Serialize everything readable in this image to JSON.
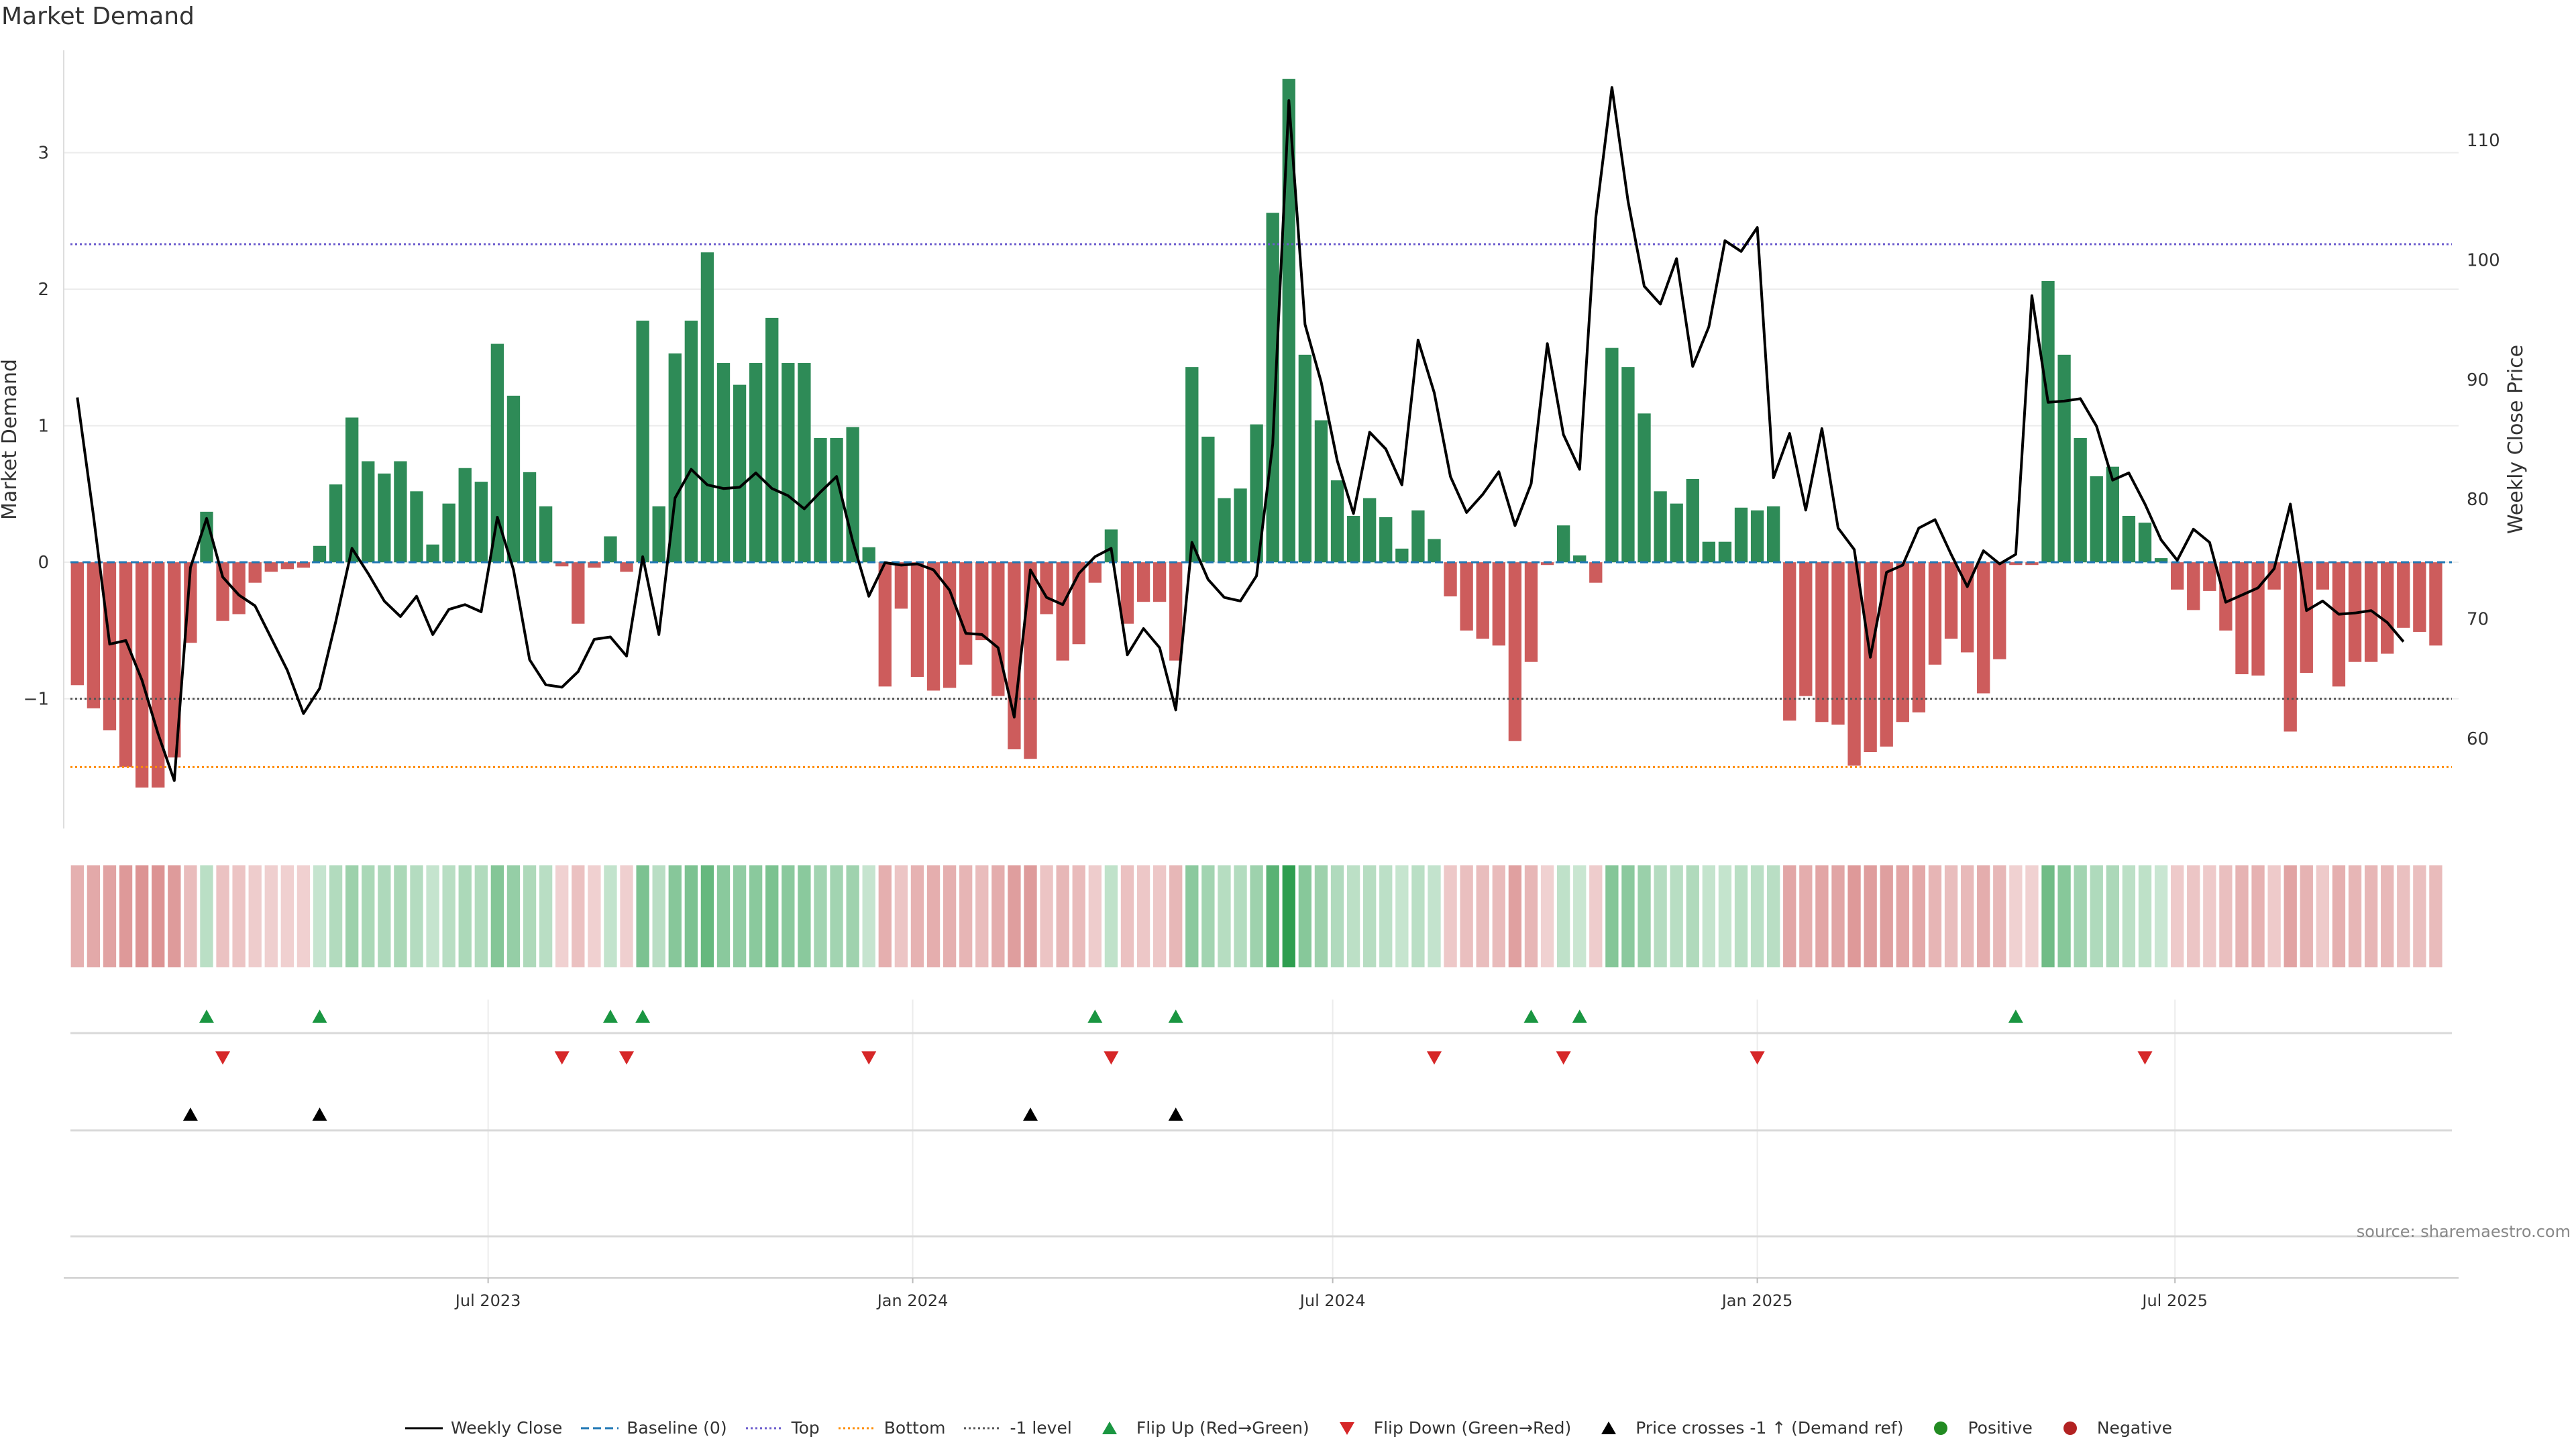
{
  "title": "Market Demand",
  "source": "source: sharemaestro.com",
  "colors": {
    "positive": "#2e8b57",
    "negative": "#cd5c5c",
    "price": "#000000",
    "top": "#6a5acd",
    "bottom": "#ff8c00",
    "minus_one": "#555555",
    "baseline": "#1f77b4",
    "flip_up": "#1a9641",
    "flip_down": "#d62728",
    "cross": "#000000",
    "positive_dot": "#228b22",
    "negative_dot": "#b22222"
  },
  "legend": [
    {
      "label": "Weekly Close",
      "kind": "line",
      "color": "#000000",
      "dash": ""
    },
    {
      "label": "Baseline (0)",
      "kind": "line",
      "color": "#1f77b4",
      "dash": "12,6"
    },
    {
      "label": "Top",
      "kind": "line",
      "color": "#6a5acd",
      "dash": "3,4"
    },
    {
      "label": "Bottom",
      "kind": "line",
      "color": "#ff8c00",
      "dash": "3,4"
    },
    {
      "label": "-1 level",
      "kind": "line",
      "color": "#555555",
      "dash": "3,4"
    },
    {
      "label": "Flip Up (Red→Green)",
      "kind": "tri-up",
      "color": "#1a9641"
    },
    {
      "label": "Flip Down (Green→Red)",
      "kind": "tri-down",
      "color": "#d62728"
    },
    {
      "label": "Price crosses -1 ↑ (Demand ref)",
      "kind": "tri-up",
      "color": "#000000"
    },
    {
      "label": "Positive",
      "kind": "dot",
      "color": "#228b22"
    },
    {
      "label": "Negative",
      "kind": "dot",
      "color": "#b22222"
    }
  ],
  "chart_data": {
    "type": "bar",
    "title": "Market Demand",
    "ylabel": "Market Demand",
    "y2label": "Weekly Close Price",
    "ylim": [
      -1.95,
      3.75
    ],
    "y2lim": [
      52.5,
      117.5
    ],
    "yticks": [
      -1,
      0,
      1,
      2,
      3
    ],
    "ytick_labels": [
      "−1",
      "0",
      "1",
      "2",
      "3"
    ],
    "y2ticks": [
      60,
      70,
      80,
      90,
      100,
      110
    ],
    "x_start": "2023-01-01",
    "x_end": "2025-10-29",
    "date_ticks": [
      {
        "date": "2023-07-01",
        "label": "Jul 2023"
      },
      {
        "date": "2024-01-01",
        "label": "Jan 2024"
      },
      {
        "date": "2024-07-01",
        "label": "Jul 2024"
      },
      {
        "date": "2025-01-01",
        "label": "Jan 2025"
      },
      {
        "date": "2025-07-01",
        "label": "Jul 2025"
      }
    ],
    "first_week": "2023-01-04",
    "week_days": 7,
    "reference_lines": {
      "top": 2.33,
      "bottom": -1.5,
      "minus_one": -1,
      "baseline": 0
    },
    "demand": [
      -0.9,
      -1.07,
      -1.23,
      -1.5,
      -1.65,
      -1.65,
      -1.43,
      -0.59,
      0.37,
      -0.43,
      -0.38,
      -0.15,
      -0.07,
      -0.05,
      -0.04,
      0.12,
      0.57,
      1.06,
      0.74,
      0.65,
      0.74,
      0.52,
      0.13,
      0.43,
      0.69,
      0.59,
      1.6,
      1.22,
      0.66,
      0.41,
      -0.03,
      -0.45,
      -0.04,
      0.19,
      -0.07,
      1.77,
      0.41,
      1.53,
      1.77,
      2.27,
      1.46,
      1.3,
      1.46,
      1.79,
      1.46,
      1.46,
      0.91,
      0.91,
      0.99,
      0.11,
      -0.91,
      -0.34,
      -0.84,
      -0.94,
      -0.92,
      -0.75,
      -0.57,
      -0.98,
      -1.37,
      -1.44,
      -0.38,
      -0.72,
      -0.6,
      -0.15,
      0.24,
      -0.45,
      -0.29,
      -0.29,
      -0.72,
      1.43,
      0.92,
      0.47,
      0.54,
      1.01,
      2.56,
      3.54,
      1.52,
      1.04,
      0.6,
      0.34,
      0.47,
      0.33,
      0.1,
      0.38,
      0.17,
      -0.25,
      -0.5,
      -0.56,
      -0.61,
      -1.31,
      -0.73,
      -0.02,
      0.27,
      0.05,
      -0.15,
      1.57,
      1.43,
      1.09,
      0.52,
      0.43,
      0.61,
      0.15,
      0.15,
      0.4,
      0.38,
      0.41,
      -1.16,
      -0.98,
      -1.17,
      -1.19,
      -1.49,
      -1.39,
      -1.35,
      -1.17,
      -1.1,
      -0.75,
      -0.56,
      -0.66,
      -0.96,
      -0.71,
      -0.02,
      -0.02,
      2.06,
      1.52,
      0.91,
      0.63,
      0.7,
      0.34,
      0.29,
      0.03,
      -0.2,
      -0.35,
      -0.21,
      -0.5,
      -0.82,
      -0.83,
      -0.2,
      -1.24,
      -0.81,
      -0.2,
      -0.91,
      -0.73,
      -0.73,
      -0.67,
      -0.48,
      -0.51,
      -0.61
    ],
    "close": [
      88.5,
      78.6,
      67.9,
      68.2,
      64.9,
      60.4,
      56.5,
      74.3,
      78.4,
      73.5,
      72.0,
      71.1,
      68.4,
      65.7,
      62.1,
      64.2,
      69.8,
      75.9,
      73.8,
      71.5,
      70.2,
      71.9,
      68.7,
      70.8,
      71.2,
      70.6,
      78.5,
      74.1,
      66.6,
      64.5,
      64.3,
      65.6,
      68.3,
      68.5,
      66.9,
      75.2,
      68.7,
      80.1,
      82.5,
      81.2,
      80.9,
      81.0,
      82.2,
      80.9,
      80.3,
      79.2,
      80.6,
      81.9,
      76.5,
      71.9,
      74.7,
      74.5,
      74.6,
      74.1,
      72.4,
      68.8,
      68.7,
      67.6,
      61.8,
      74.1,
      71.8,
      71.2,
      73.8,
      75.2,
      75.9,
      67.0,
      69.2,
      67.6,
      62.4,
      76.4,
      73.3,
      71.8,
      71.5,
      73.6,
      84.6,
      113.3,
      94.6,
      89.8,
      83.2,
      78.8,
      85.6,
      84.2,
      81.2,
      93.3,
      88.9,
      81.9,
      78.9,
      80.4,
      82.3,
      77.8,
      81.3,
      93.0,
      85.4,
      82.5,
      103.5,
      114.4,
      104.9,
      97.8,
      96.3,
      100.1,
      91.1,
      94.4,
      101.6,
      100.7,
      102.7,
      81.8,
      85.5,
      79.1,
      85.9,
      77.6,
      75.8,
      66.8,
      73.9,
      74.5,
      77.6,
      78.3,
      75.4,
      72.7,
      75.7,
      74.6,
      75.4,
      97.0,
      88.1,
      88.2,
      88.4,
      86.1,
      81.6,
      82.2,
      79.6,
      76.6,
      74.9,
      77.5,
      76.4,
      71.4,
      72.0,
      72.6,
      74.2,
      79.6,
      70.7,
      71.5,
      70.4,
      70.5,
      70.7,
      69.7,
      68.1
    ],
    "flip_up_weeks": [
      8,
      15,
      33,
      35,
      63,
      68,
      90,
      93,
      120
    ],
    "flip_down_weeks": [
      9,
      30,
      34,
      49,
      64,
      84,
      92,
      104,
      128
    ],
    "price_cross_weeks": [
      7,
      15,
      59,
      68
    ]
  }
}
